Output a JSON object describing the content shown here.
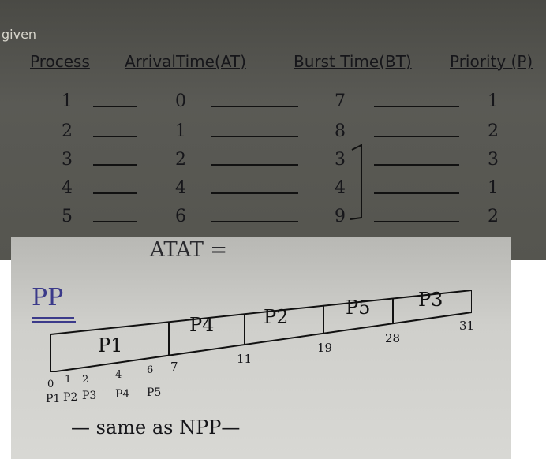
{
  "given_label": "given",
  "table": {
    "headers": [
      "Process",
      "ArrivalTime(AT)",
      "Burst Time(BT)",
      "Priority (P)"
    ],
    "rows": [
      {
        "process": "1",
        "at": "0",
        "bt": "7",
        "p": "1"
      },
      {
        "process": "2",
        "at": "1",
        "bt": "8",
        "p": "2"
      },
      {
        "process": "3",
        "at": "2",
        "bt": "3",
        "p": "3"
      },
      {
        "process": "4",
        "at": "4",
        "bt": "4",
        "p": "1"
      },
      {
        "process": "5",
        "at": "6",
        "bt": "9",
        "p": "2"
      }
    ]
  },
  "atat_label": "ATAT =",
  "pp_label": "PP",
  "gantt": {
    "blocks": [
      {
        "label": "P1",
        "start": 0,
        "end": 7
      },
      {
        "label": "P4",
        "start": 7,
        "end": 11
      },
      {
        "label": "P2",
        "start": 11,
        "end": 19
      },
      {
        "label": "P5",
        "start": 19,
        "end": 28
      },
      {
        "label": "P3",
        "start": 28,
        "end": 31
      }
    ],
    "time_labels": [
      "7",
      "11",
      "19",
      "28",
      "31"
    ],
    "sub_times": [
      "0",
      "1",
      "2",
      "4",
      "6"
    ],
    "arrivals": [
      "P1",
      "P2",
      "P3",
      "P4",
      "P5"
    ]
  },
  "footer_note": "— same as NPP—"
}
